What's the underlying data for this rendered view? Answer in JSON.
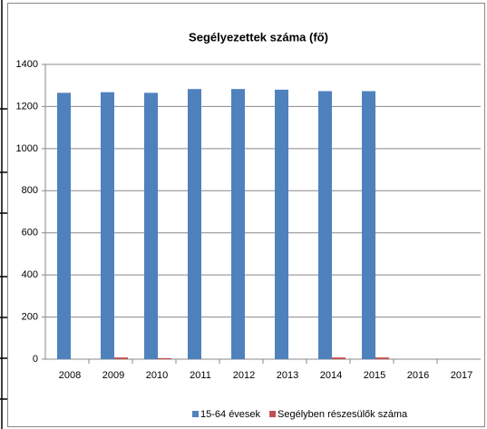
{
  "chart_data": {
    "type": "bar",
    "title": "Segélyezettek száma (fő)",
    "categories": [
      "2008",
      "2009",
      "2010",
      "2011",
      "2012",
      "2013",
      "2014",
      "2015",
      "2016",
      "2017"
    ],
    "series": [
      {
        "name": "15-64 évesek",
        "color": "#4f81bd",
        "values": [
          1265,
          1268,
          1265,
          1283,
          1283,
          1280,
          1273,
          1273,
          null,
          null
        ]
      },
      {
        "name": "Segélyben részesülők száma",
        "color": "#c0504d",
        "values": [
          0,
          8,
          5,
          0,
          0,
          0,
          8,
          8,
          null,
          null
        ]
      }
    ],
    "ylim": [
      0,
      1400
    ],
    "yticks": [
      0,
      200,
      400,
      600,
      800,
      1000,
      1200,
      1400
    ],
    "grid": true,
    "legend": "bottom"
  }
}
